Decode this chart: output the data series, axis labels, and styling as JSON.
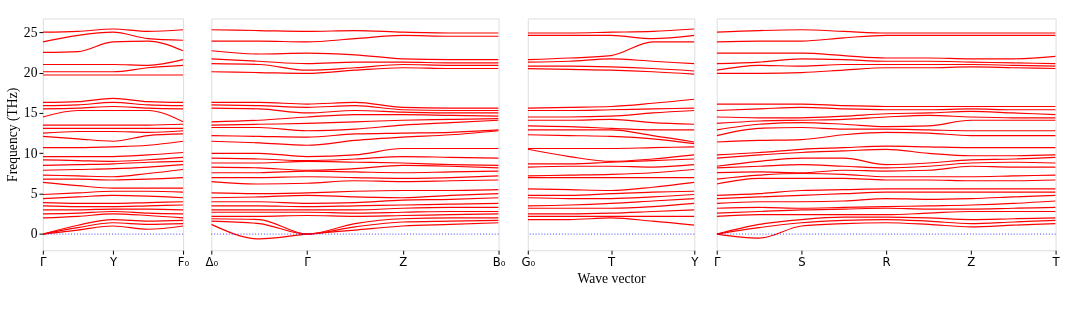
{
  "chart_data": [
    {
      "type": "line",
      "ylabel": "Frequency (THz)",
      "categories": [
        "Γ",
        null,
        "Y",
        null,
        "F₀"
      ],
      "ylim": [
        -2,
        26.7
      ],
      "yticks": [
        0,
        5,
        10,
        15,
        20,
        25
      ],
      "ref_lines": [
        {
          "axis": "y",
          "value": 0,
          "color": "#0000ff",
          "line_style": "dotted"
        }
      ],
      "series": [
        {
          "color": "#ff0000",
          "values": [
            0,
            0.5,
            1.0,
            0.6,
            1.0
          ]
        },
        {
          "color": "#ff0000",
          "values": [
            0,
            0.8,
            1.4,
            1.2,
            1.3
          ]
        },
        {
          "color": "#ff0000",
          "values": [
            0,
            1.1,
            1.8,
            1.6,
            1.7
          ]
        },
        {
          "color": "#ff0000",
          "values": [
            2.0,
            2.2,
            2.5,
            2.3,
            2.0
          ]
        },
        {
          "color": "#ff0000",
          "values": [
            2.5,
            2.6,
            2.8,
            2.6,
            2.5
          ]
        },
        {
          "color": "#ff0000",
          "values": [
            3.0,
            3.0,
            3.1,
            3.1,
            3.0
          ]
        },
        {
          "color": "#ff0000",
          "values": [
            3.5,
            3.4,
            3.4,
            3.5,
            3.6
          ]
        },
        {
          "color": "#ff0000",
          "values": [
            3.9,
            3.8,
            3.8,
            3.9,
            4.0
          ]
        },
        {
          "color": "#ff0000",
          "values": [
            4.4,
            4.6,
            4.8,
            4.7,
            4.5
          ]
        },
        {
          "color": "#ff0000",
          "values": [
            4.9,
            5.1,
            5.3,
            5.3,
            5.2
          ]
        },
        {
          "color": "#ff0000",
          "values": [
            6.4,
            6.0,
            5.7,
            5.7,
            5.7
          ]
        },
        {
          "color": "#ff0000",
          "values": [
            6.8,
            6.8,
            6.7,
            6.8,
            7.0
          ]
        },
        {
          "color": "#ff0000",
          "values": [
            7.3,
            7.2,
            7.1,
            7.5,
            8.0
          ]
        },
        {
          "color": "#ff0000",
          "values": [
            7.9,
            8.0,
            8.1,
            8.3,
            8.6
          ]
        },
        {
          "color": "#ff0000",
          "values": [
            8.5,
            8.6,
            8.7,
            8.9,
            9.0
          ]
        },
        {
          "color": "#ff0000",
          "values": [
            9.2,
            9.1,
            9.0,
            9.2,
            9.5
          ]
        },
        {
          "color": "#ff0000",
          "values": [
            9.6,
            9.6,
            9.6,
            9.8,
            10.1
          ]
        },
        {
          "color": "#ff0000",
          "values": [
            10.7,
            10.7,
            10.8,
            11.0,
            11.5
          ]
        },
        {
          "color": "#ff0000",
          "values": [
            12.1,
            11.8,
            11.5,
            12.2,
            12.4
          ]
        },
        {
          "color": "#ff0000",
          "values": [
            12.5,
            12.7,
            12.7,
            12.6,
            12.8
          ]
        },
        {
          "color": "#ff0000",
          "values": [
            13.1,
            13.1,
            13.1,
            13.1,
            13.1
          ]
        },
        {
          "color": "#ff0000",
          "values": [
            13.5,
            13.5,
            13.5,
            13.5,
            13.6
          ]
        },
        {
          "color": "#ff0000",
          "values": [
            14.5,
            15.3,
            15.3,
            15.3,
            13.9
          ]
        },
        {
          "color": "#ff0000",
          "values": [
            15.5,
            15.6,
            15.8,
            15.6,
            15.5
          ]
        },
        {
          "color": "#ff0000",
          "values": [
            15.9,
            16.0,
            16.3,
            16.0,
            15.9
          ]
        },
        {
          "color": "#ff0000",
          "values": [
            16.3,
            16.4,
            16.8,
            16.4,
            16.3
          ]
        },
        {
          "color": "#ff0000",
          "values": [
            19.7,
            19.7,
            19.7,
            19.7,
            19.7
          ]
        },
        {
          "color": "#ff0000",
          "values": [
            20.1,
            20.1,
            20.1,
            20.6,
            20.9
          ]
        },
        {
          "color": "#ff0000",
          "values": [
            21.0,
            21.0,
            21.0,
            20.9,
            21.6
          ]
        },
        {
          "color": "#ff0000",
          "values": [
            22.5,
            22.6,
            23.8,
            23.9,
            22.7
          ]
        },
        {
          "color": "#ff0000",
          "values": [
            23.8,
            24.6,
            25.0,
            24.2,
            24.0
          ]
        },
        {
          "color": "#ff0000",
          "values": [
            25.0,
            25.1,
            25.4,
            25.1,
            25.3
          ]
        }
      ]
    },
    {
      "type": "line",
      "tick_labels": "x",
      "categories": [
        "Δ₀",
        null,
        "Γ",
        null,
        "Z",
        null,
        "B₀"
      ],
      "ylim": [
        -2,
        26.7
      ],
      "yticks": [
        0,
        5,
        10,
        15,
        20,
        25
      ],
      "ref_lines": [
        {
          "axis": "y",
          "value": 0,
          "color": "#0000ff",
          "line_style": "dotted"
        }
      ],
      "series": [
        {
          "color": "#ff0000",
          "values": [
            1.2,
            -0.6,
            0,
            0.5,
            1.0,
            1.2,
            1.4
          ]
        },
        {
          "color": "#ff0000",
          "values": [
            1.6,
            1.3,
            0,
            0.9,
            1.5,
            1.6,
            1.7
          ]
        },
        {
          "color": "#ff0000",
          "values": [
            1.9,
            1.8,
            0,
            1.3,
            1.9,
            2.0,
            2.0
          ]
        },
        {
          "color": "#ff0000",
          "values": [
            2.2,
            2.2,
            2.3,
            2.2,
            2.3,
            2.4,
            2.5
          ]
        },
        {
          "color": "#ff0000",
          "values": [
            2.7,
            2.7,
            2.7,
            2.6,
            2.7,
            2.8,
            2.8
          ]
        },
        {
          "color": "#ff0000",
          "values": [
            3.0,
            3.0,
            3.0,
            3.0,
            3.2,
            3.3,
            3.3
          ]
        },
        {
          "color": "#ff0000",
          "values": [
            3.5,
            3.5,
            3.4,
            3.5,
            3.6,
            3.7,
            3.8
          ]
        },
        {
          "color": "#ff0000",
          "values": [
            4.0,
            4.0,
            3.8,
            3.9,
            4.2,
            4.3,
            4.5
          ]
        },
        {
          "color": "#ff0000",
          "values": [
            4.5,
            4.6,
            4.8,
            4.6,
            4.5,
            4.8,
            5.0
          ]
        },
        {
          "color": "#ff0000",
          "values": [
            5.1,
            5.0,
            5.1,
            5.3,
            5.4,
            5.4,
            5.5
          ]
        },
        {
          "color": "#ff0000",
          "values": [
            6.5,
            6.2,
            6.3,
            6.6,
            6.5,
            6.6,
            6.7
          ]
        },
        {
          "color": "#ff0000",
          "values": [
            7.0,
            7.0,
            7.1,
            7.0,
            6.9,
            7.0,
            7.2
          ]
        },
        {
          "color": "#ff0000",
          "values": [
            7.6,
            7.6,
            7.8,
            7.7,
            7.6,
            7.7,
            7.8
          ]
        },
        {
          "color": "#ff0000",
          "values": [
            8.3,
            8.2,
            7.9,
            8.1,
            8.5,
            8.4,
            8.2
          ]
        },
        {
          "color": "#ff0000",
          "values": [
            8.8,
            8.8,
            9.0,
            8.9,
            8.8,
            8.6,
            8.5
          ]
        },
        {
          "color": "#ff0000",
          "values": [
            9.4,
            9.3,
            9.1,
            9.3,
            9.6,
            9.5,
            9.4
          ]
        },
        {
          "color": "#ff0000",
          "values": [
            10.0,
            10.0,
            9.6,
            9.8,
            10.6,
            10.6,
            10.6
          ]
        },
        {
          "color": "#ff0000",
          "values": [
            11.5,
            11.3,
            11.0,
            11.6,
            12.0,
            12.3,
            12.8
          ]
        },
        {
          "color": "#ff0000",
          "values": [
            12.2,
            12.1,
            12.0,
            12.4,
            12.5,
            12.6,
            12.9
          ]
        },
        {
          "color": "#ff0000",
          "values": [
            13.2,
            13.2,
            12.8,
            13.0,
            13.5,
            13.8,
            14.1
          ]
        },
        {
          "color": "#ff0000",
          "values": [
            13.5,
            13.6,
            13.7,
            13.9,
            14.1,
            14.2,
            14.3
          ]
        },
        {
          "color": "#ff0000",
          "values": [
            13.9,
            14.1,
            14.5,
            14.8,
            14.8,
            14.7,
            14.6
          ]
        },
        {
          "color": "#ff0000",
          "values": [
            15.6,
            15.5,
            15.0,
            15.3,
            15.1,
            15.0,
            15.0
          ]
        },
        {
          "color": "#ff0000",
          "values": [
            16.0,
            15.9,
            15.7,
            15.9,
            15.4,
            15.3,
            15.3
          ]
        },
        {
          "color": "#ff0000",
          "values": [
            16.3,
            16.3,
            16.1,
            16.3,
            15.7,
            15.6,
            15.6
          ]
        },
        {
          "color": "#ff0000",
          "values": [
            20.1,
            20.0,
            19.9,
            20.3,
            20.6,
            20.5,
            20.5
          ]
        },
        {
          "color": "#ff0000",
          "values": [
            21.1,
            21.0,
            20.3,
            20.6,
            21.0,
            20.9,
            20.9
          ]
        },
        {
          "color": "#ff0000",
          "values": [
            21.7,
            21.4,
            21.1,
            21.3,
            21.3,
            21.2,
            21.2
          ]
        },
        {
          "color": "#ff0000",
          "values": [
            22.7,
            22.3,
            22.4,
            22.2,
            21.7,
            21.6,
            21.6
          ]
        },
        {
          "color": "#ff0000",
          "values": [
            23.9,
            23.9,
            23.8,
            24.2,
            24.6,
            24.5,
            24.5
          ]
        },
        {
          "color": "#ff0000",
          "values": [
            25.3,
            25.2,
            25.1,
            25.2,
            25.0,
            24.9,
            24.9
          ]
        }
      ]
    },
    {
      "type": "line",
      "tick_labels": "x",
      "xlabel": "Wave vector",
      "categories": [
        "G₀",
        null,
        "T",
        null,
        "Y"
      ],
      "ylim": [
        -2,
        26.7
      ],
      "yticks": [
        0,
        5,
        10,
        15,
        20,
        25
      ],
      "ref_lines": [
        {
          "axis": "y",
          "value": 0,
          "color": "#0000ff",
          "line_style": "dotted"
        }
      ],
      "series": [
        {
          "color": "#ff0000",
          "values": [
            1.8,
            1.8,
            2.0,
            1.6,
            1.1
          ]
        },
        {
          "color": "#ff0000",
          "values": [
            2.2,
            2.2,
            2.2,
            2.2,
            2.2
          ]
        },
        {
          "color": "#ff0000",
          "values": [
            2.5,
            2.5,
            2.6,
            2.8,
            3.0
          ]
        },
        {
          "color": "#ff0000",
          "values": [
            3.2,
            3.2,
            3.2,
            3.4,
            3.8
          ]
        },
        {
          "color": "#ff0000",
          "values": [
            3.5,
            3.6,
            3.8,
            4.1,
            4.4
          ]
        },
        {
          "color": "#ff0000",
          "values": [
            4.5,
            4.4,
            4.4,
            4.6,
            4.9
          ]
        },
        {
          "color": "#ff0000",
          "values": [
            4.8,
            4.8,
            5.0,
            5.2,
            5.3
          ]
        },
        {
          "color": "#ff0000",
          "values": [
            5.6,
            5.5,
            5.4,
            5.8,
            6.4
          ]
        },
        {
          "color": "#ff0000",
          "values": [
            7.0,
            7.0,
            7.0,
            7.0,
            7.0
          ]
        },
        {
          "color": "#ff0000",
          "values": [
            7.2,
            7.3,
            7.4,
            7.6,
            8.0
          ]
        },
        {
          "color": "#ff0000",
          "values": [
            8.3,
            8.4,
            8.4,
            8.3,
            8.6
          ]
        },
        {
          "color": "#ff0000",
          "values": [
            8.7,
            8.7,
            8.9,
            9.1,
            9.3
          ]
        },
        {
          "color": "#ff0000",
          "values": [
            10.5,
            9.6,
            9.0,
            9.3,
            9.8
          ]
        },
        {
          "color": "#ff0000",
          "values": [
            10.6,
            10.6,
            10.6,
            10.7,
            10.8
          ]
        },
        {
          "color": "#ff0000",
          "values": [
            12.3,
            12.2,
            12.1,
            11.8,
            11.2
          ]
        },
        {
          "color": "#ff0000",
          "values": [
            12.9,
            12.9,
            12.9,
            12.2,
            11.4
          ]
        },
        {
          "color": "#ff0000",
          "values": [
            13.4,
            13.3,
            13.1,
            12.9,
            12.9
          ]
        },
        {
          "color": "#ff0000",
          "values": [
            14.1,
            14.1,
            14.2,
            13.8,
            13.6
          ]
        },
        {
          "color": "#ff0000",
          "values": [
            14.5,
            14.5,
            14.6,
            15.0,
            15.3
          ]
        },
        {
          "color": "#ff0000",
          "values": [
            15.3,
            15.3,
            15.4,
            15.5,
            15.6
          ]
        },
        {
          "color": "#ff0000",
          "values": [
            15.6,
            15.7,
            15.8,
            16.2,
            16.7
          ]
        },
        {
          "color": "#ff0000",
          "values": [
            20.5,
            20.4,
            20.3,
            20.1,
            19.8
          ]
        },
        {
          "color": "#ff0000",
          "values": [
            20.8,
            20.8,
            20.7,
            20.5,
            20.2
          ]
        },
        {
          "color": "#ff0000",
          "values": [
            21.3,
            21.4,
            21.7,
            21.4,
            21.1
          ]
        },
        {
          "color": "#ff0000",
          "values": [
            21.6,
            21.8,
            22.1,
            23.8,
            23.8
          ]
        },
        {
          "color": "#ff0000",
          "values": [
            24.6,
            24.6,
            24.6,
            24.2,
            24.6
          ]
        },
        {
          "color": "#ff0000",
          "values": [
            24.9,
            24.9,
            25.0,
            25.1,
            25.4
          ]
        }
      ]
    },
    {
      "type": "line",
      "tick_labels": "x",
      "categories": [
        "Γ",
        null,
        "S",
        null,
        "R",
        null,
        "Z",
        null,
        "T"
      ],
      "ylim": [
        -2,
        26.7
      ],
      "yticks": [
        0,
        5,
        10,
        15,
        20,
        25
      ],
      "ref_lines": [
        {
          "axis": "y",
          "value": 0,
          "color": "#0000ff",
          "line_style": "dotted"
        }
      ],
      "series": [
        {
          "color": "#ff0000",
          "values": [
            0,
            -0.5,
            1.0,
            1.3,
            1.4,
            1.2,
            0.9,
            1.1,
            1.3
          ]
        },
        {
          "color": "#ff0000",
          "values": [
            0,
            0.8,
            1.4,
            1.7,
            1.8,
            1.6,
            1.3,
            1.5,
            1.7
          ]
        },
        {
          "color": "#ff0000",
          "values": [
            0,
            1.2,
            1.8,
            2.1,
            2.1,
            2.0,
            1.8,
            1.9,
            2.0
          ]
        },
        {
          "color": "#ff0000",
          "values": [
            2.2,
            2.4,
            2.4,
            2.4,
            2.4,
            2.6,
            2.8,
            2.8,
            2.8
          ]
        },
        {
          "color": "#ff0000",
          "values": [
            2.6,
            2.8,
            3.0,
            3.1,
            3.2,
            3.1,
            3.1,
            3.2,
            3.3
          ]
        },
        {
          "color": "#ff0000",
          "values": [
            3.2,
            3.3,
            3.2,
            3.3,
            3.4,
            3.5,
            3.6,
            3.8,
            4.1
          ]
        },
        {
          "color": "#ff0000",
          "values": [
            3.8,
            4.0,
            4.0,
            4.1,
            4.4,
            4.3,
            4.4,
            4.6,
            4.8
          ]
        },
        {
          "color": "#ff0000",
          "values": [
            4.4,
            4.6,
            4.8,
            5.0,
            5.2,
            5.2,
            5.2,
            5.2,
            5.2
          ]
        },
        {
          "color": "#ff0000",
          "values": [
            4.8,
            5.0,
            5.4,
            5.5,
            5.6,
            5.6,
            5.6,
            5.6,
            5.6
          ]
        },
        {
          "color": "#ff0000",
          "values": [
            6.2,
            6.9,
            6.9,
            6.9,
            6.7,
            6.7,
            6.6,
            6.6,
            6.7
          ]
        },
        {
          "color": "#ff0000",
          "values": [
            6.8,
            7.3,
            7.5,
            7.4,
            7.1,
            7.1,
            7.1,
            7.2,
            7.3
          ]
        },
        {
          "color": "#ff0000",
          "values": [
            7.6,
            7.7,
            7.6,
            7.9,
            7.8,
            7.9,
            8.4,
            8.3,
            8.3
          ]
        },
        {
          "color": "#ff0000",
          "values": [
            8.2,
            8.4,
            8.6,
            8.4,
            8.2,
            8.4,
            8.8,
            8.9,
            8.8
          ]
        },
        {
          "color": "#ff0000",
          "values": [
            8.4,
            9.0,
            9.4,
            9.4,
            8.6,
            8.8,
            9.2,
            9.3,
            9.5
          ]
        },
        {
          "color": "#ff0000",
          "values": [
            9.4,
            9.8,
            10.1,
            10.3,
            10.5,
            10.0,
            9.7,
            9.7,
            9.8
          ]
        },
        {
          "color": "#ff0000",
          "values": [
            9.8,
            10.1,
            10.5,
            10.7,
            10.9,
            10.8,
            10.7,
            10.7,
            10.7
          ]
        },
        {
          "color": "#ff0000",
          "values": [
            11.4,
            11.6,
            11.7,
            12.3,
            12.6,
            12.5,
            12.2,
            12.2,
            12.2
          ]
        },
        {
          "color": "#ff0000",
          "values": [
            12.2,
            13.1,
            13.2,
            13.0,
            13.0,
            12.9,
            12.8,
            12.8,
            12.8
          ]
        },
        {
          "color": "#ff0000",
          "values": [
            12.9,
            13.6,
            13.8,
            13.6,
            13.3,
            13.4,
            14.1,
            14.1,
            14.1
          ]
        },
        {
          "color": "#ff0000",
          "values": [
            13.7,
            14.0,
            14.1,
            14.2,
            14.5,
            14.7,
            14.5,
            14.4,
            14.4
          ]
        },
        {
          "color": "#ff0000",
          "values": [
            14.5,
            14.4,
            14.4,
            14.6,
            14.9,
            15.0,
            15.2,
            15.0,
            14.8
          ]
        },
        {
          "color": "#ff0000",
          "values": [
            15.3,
            15.5,
            15.7,
            15.5,
            15.4,
            15.4,
            15.5,
            15.4,
            15.4
          ]
        },
        {
          "color": "#ff0000",
          "values": [
            16.1,
            16.1,
            16.1,
            15.9,
            15.8,
            15.8,
            15.8,
            15.8,
            15.8
          ]
        },
        {
          "color": "#ff0000",
          "values": [
            19.9,
            19.9,
            20.0,
            20.3,
            20.6,
            20.6,
            20.7,
            20.6,
            20.5
          ]
        },
        {
          "color": "#ff0000",
          "values": [
            20.3,
            20.9,
            20.8,
            21.0,
            21.0,
            21.0,
            21.0,
            20.9,
            20.8
          ]
        },
        {
          "color": "#ff0000",
          "values": [
            21.1,
            21.3,
            21.7,
            21.6,
            21.4,
            21.4,
            21.3,
            21.2,
            21.1
          ]
        },
        {
          "color": "#ff0000",
          "values": [
            22.4,
            22.4,
            22.4,
            22.1,
            21.8,
            21.8,
            21.7,
            21.7,
            22.0
          ]
        },
        {
          "color": "#ff0000",
          "values": [
            23.8,
            23.9,
            23.9,
            24.3,
            24.6,
            24.6,
            24.6,
            24.6,
            24.6
          ]
        },
        {
          "color": "#ff0000",
          "values": [
            25.0,
            25.2,
            25.3,
            25.1,
            24.9,
            24.9,
            24.9,
            24.9,
            24.9
          ]
        }
      ]
    }
  ]
}
